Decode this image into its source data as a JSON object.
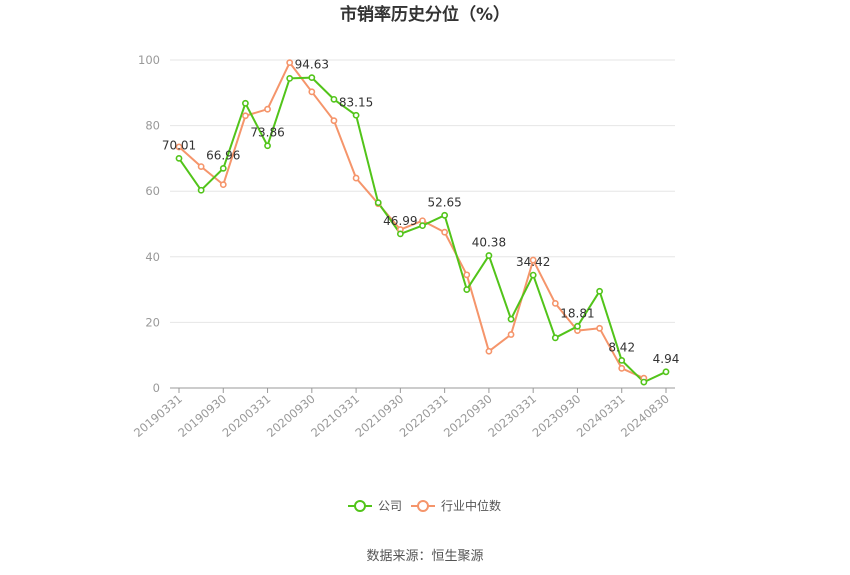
{
  "chart_data": {
    "type": "line",
    "title": "市销率历史分位（%）",
    "xlabel": "",
    "ylabel": "",
    "ylim": [
      0,
      100
    ],
    "yticks": [
      0,
      20,
      40,
      60,
      80,
      100
    ],
    "grid": true,
    "legend_position": "bottom",
    "x": [
      "20190331",
      "20190630",
      "20190930",
      "20191231",
      "20200331",
      "20200630",
      "20200930",
      "20201231",
      "20210331",
      "20210630",
      "20210930",
      "20211231",
      "20220331",
      "20220630",
      "20220930",
      "20221231",
      "20230331",
      "20230630",
      "20230930",
      "20231231",
      "20240331",
      "20240630",
      "20240830"
    ],
    "x_tick_labels": [
      "20190331",
      "20190930",
      "20200331",
      "20200930",
      "20210331",
      "20210930",
      "20220331",
      "20220930",
      "20230331",
      "20230930",
      "20240331",
      "20240830"
    ],
    "series": [
      {
        "name": "公司",
        "color": "#52c41a",
        "values": [
          70.01,
          60.3,
          66.96,
          86.8,
          73.86,
          94.4,
          94.63,
          88.0,
          83.15,
          56.5,
          46.99,
          49.5,
          52.65,
          30.0,
          40.38,
          21.0,
          34.42,
          15.3,
          18.81,
          29.5,
          8.42,
          1.8,
          4.94
        ],
        "labels": {
          "0": "70.01",
          "2": "66.96",
          "4": "73.86",
          "6": "94.63",
          "8": "83.15",
          "10": "46.99",
          "12": "52.65",
          "14": "40.38",
          "16": "34.42",
          "18": "18.81",
          "20": "8.42",
          "22": "4.94"
        }
      },
      {
        "name": "行业中位数",
        "color": "#f5956b",
        "values": [
          73.5,
          67.5,
          62.0,
          83.0,
          85.0,
          99.2,
          90.3,
          81.5,
          64.0,
          56.2,
          48.3,
          51.0,
          47.5,
          34.5,
          11.2,
          16.3,
          39.0,
          25.8,
          17.5,
          18.2,
          6.0,
          3.0,
          null
        ]
      }
    ]
  },
  "footer": {
    "source": "数据来源：恒生聚源"
  }
}
